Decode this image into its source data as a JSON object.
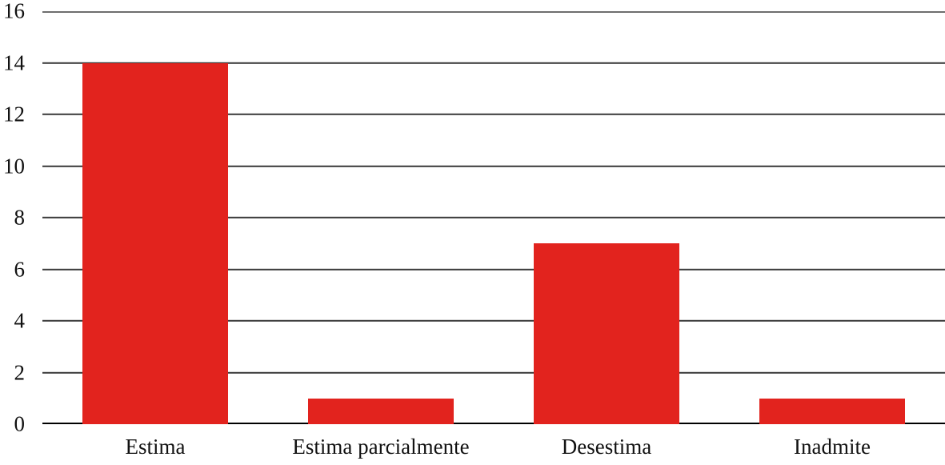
{
  "chart_data": {
    "type": "bar",
    "categories": [
      "Estima",
      "Estima parcialmente",
      "Desestima",
      "Inadmite"
    ],
    "values": [
      14,
      1,
      7,
      1
    ],
    "title": "",
    "xlabel": "",
    "ylabel": "",
    "ylim": [
      0,
      16
    ],
    "yticks": [
      0,
      2,
      4,
      6,
      8,
      10,
      12,
      14,
      16
    ],
    "ytick_labels": [
      "0",
      "2",
      "4",
      "6",
      "8",
      "10",
      "12",
      "14",
      "16"
    ],
    "grid": true,
    "legend": false,
    "bar_color": "#e2231e",
    "gridline_color": "#3a3a3a",
    "top_border_color": "#6e6e6e",
    "baseline_color": "#000000",
    "text_color": "#111111",
    "bar_width_fraction": 0.645
  }
}
